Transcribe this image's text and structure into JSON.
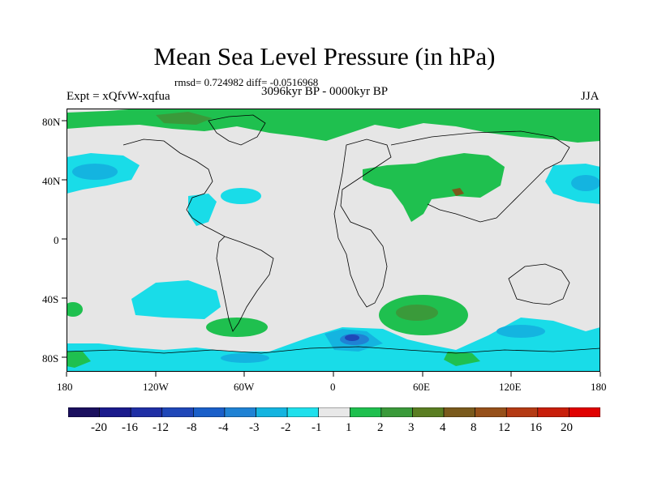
{
  "title": "Mean Sea Level Pressure (in hPa)",
  "stats": "rmsd= 0.724982 diff= -0.0516968",
  "experiment": "Expt = xQfvW-xqfua",
  "period": "3096kyr BP - 0000kyr BP",
  "season": "JJA",
  "y_ticks": [
    "80N",
    "40N",
    "0",
    "40S",
    "80S"
  ],
  "x_ticks": [
    "180",
    "120W",
    "60W",
    "0",
    "60E",
    "120E",
    "180"
  ],
  "colorbar": {
    "labels": [
      "-20",
      "-16",
      "-12",
      "-8",
      "-4",
      "-3",
      "-2",
      "-1",
      "1",
      "2",
      "3",
      "4",
      "8",
      "12",
      "16",
      "20"
    ],
    "colors": [
      "#1a0f5e",
      "#1a1a8c",
      "#1f2fa5",
      "#1f47b8",
      "#1a5fc9",
      "#1f82d4",
      "#14b4e0",
      "#1fe0ec",
      "#e8e8e8",
      "#1fc04f",
      "#3a9a3a",
      "#5a7e22",
      "#7a5a1c",
      "#96501a",
      "#b43a14",
      "#c81e0a",
      "#e00000"
    ]
  },
  "map_colors": {
    "background": "#e6e6e6",
    "neg1": "#19dce8",
    "neg2": "#14b4e0",
    "neg3": "#1f82d4",
    "neg4": "#1f47b8",
    "pos1": "#1fc04f",
    "pos2": "#3a9a3a",
    "pos3": "#7a5a1c"
  }
}
